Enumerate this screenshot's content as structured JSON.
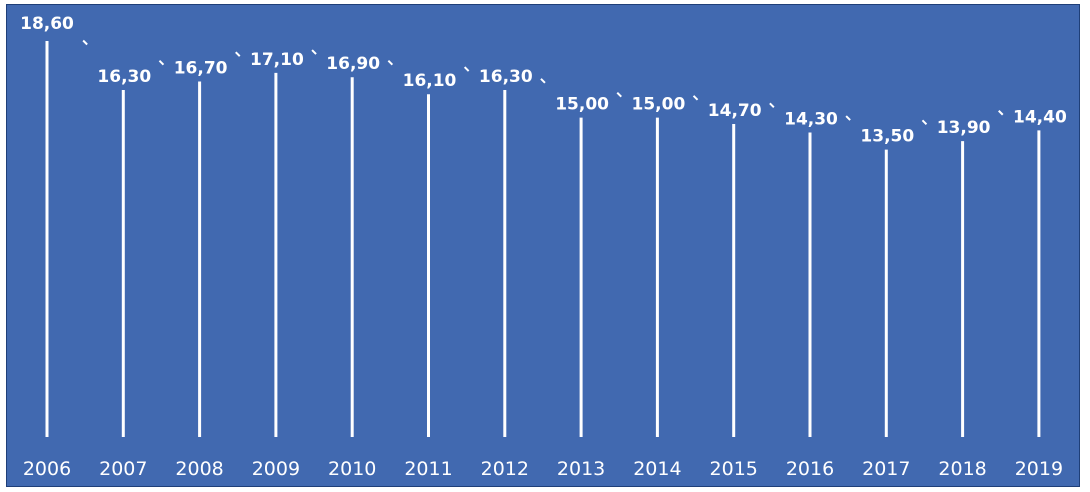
{
  "colors": {
    "background": "#4169B0",
    "line": "#ffffff",
    "text": "#ffffff"
  },
  "chart_data": {
    "type": "bar",
    "categories": [
      "2006",
      "2007",
      "2008",
      "2009",
      "2010",
      "2011",
      "2012",
      "2013",
      "2014",
      "2015",
      "2016",
      "2017",
      "2018",
      "2019"
    ],
    "values": [
      18.6,
      16.3,
      16.7,
      17.1,
      16.9,
      16.1,
      16.3,
      15.0,
      15.0,
      14.7,
      14.3,
      13.5,
      13.9,
      14.4
    ],
    "data_labels": [
      "18,60",
      "16,30",
      "16,70",
      "17,10",
      "16,90",
      "16,10",
      "16,30",
      "15,00",
      "15,00",
      "14,70",
      "14,30",
      "13,50",
      "13,90",
      "14,40"
    ],
    "title": "",
    "xlabel": "",
    "ylabel": "",
    "ylim": [
      0,
      18.6
    ],
    "grid": false,
    "legend": "none"
  }
}
